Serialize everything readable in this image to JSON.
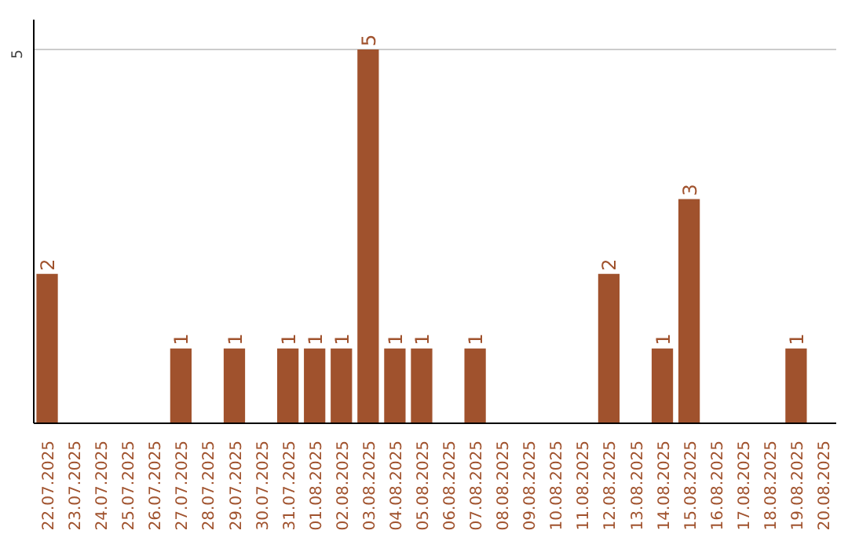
{
  "chart_data": {
    "type": "bar",
    "categories": [
      "22.07.2025",
      "23.07.2025",
      "24.07.2025",
      "25.07.2025",
      "26.07.2025",
      "27.07.2025",
      "28.07.2025",
      "29.07.2025",
      "30.07.2025",
      "31.07.2025",
      "01.08.2025",
      "02.08.2025",
      "03.08.2025",
      "04.08.2025",
      "05.08.2025",
      "06.08.2025",
      "07.08.2025",
      "08.08.2025",
      "09.08.2025",
      "10.08.2025",
      "11.08.2025",
      "12.08.2025",
      "13.08.2025",
      "14.08.2025",
      "15.08.2025",
      "16.08.2025",
      "17.08.2025",
      "18.08.2025",
      "19.08.2025",
      "20.08.2025"
    ],
    "values": [
      2,
      null,
      null,
      null,
      null,
      1,
      null,
      1,
      null,
      1,
      1,
      1,
      5,
      1,
      1,
      null,
      1,
      null,
      null,
      null,
      null,
      2,
      null,
      1,
      3,
      null,
      null,
      null,
      1,
      null
    ],
    "color": "#a0522d",
    "ylim": [
      0,
      5.4
    ],
    "yticks": [
      5
    ],
    "grid": "y",
    "data_labels": true
  }
}
